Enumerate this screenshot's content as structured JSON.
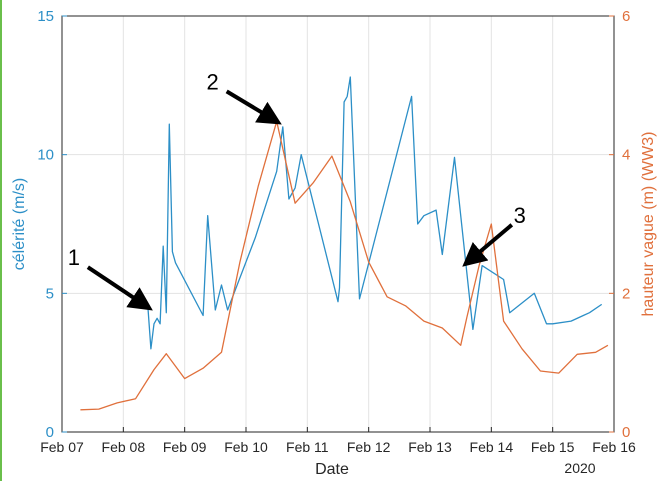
{
  "chart_data": {
    "type": "line",
    "xlabel": "Date",
    "ylabel_left": "célérité (m/s)",
    "ylabel_right": "hauteur vague (m) (WW3)",
    "year_label": "2020",
    "xlim": [
      "2020-02-07",
      "2020-02-16"
    ],
    "ylim_left": [
      0,
      15
    ],
    "ylim_right": [
      0,
      6
    ],
    "x_ticks": [
      "Feb 07",
      "Feb 08",
      "Feb 09",
      "Feb 10",
      "Feb 11",
      "Feb 12",
      "Feb 13",
      "Feb 14",
      "Feb 15",
      "Feb 16"
    ],
    "y_ticks_left": [
      "0",
      "5",
      "10",
      "15"
    ],
    "y_ticks_right": [
      "0",
      "2",
      "4",
      "6"
    ],
    "grid": true,
    "series": [
      {
        "axis": "left",
        "color": "#2c8fc7",
        "x": [
          "2020-02-08 09:36",
          "2020-02-08 10:48",
          "2020-02-08 12:00",
          "2020-02-08 13:12",
          "2020-02-08 14:24",
          "2020-02-08 15:36",
          "2020-02-08 16:48",
          "2020-02-08 18:00",
          "2020-02-08 19:12",
          "2020-02-08 20:24",
          "2020-02-09 07:12",
          "2020-02-09 09:00",
          "2020-02-09 12:00",
          "2020-02-09 14:24",
          "2020-02-09 16:48",
          "2020-02-10 03:36",
          "2020-02-10 12:00",
          "2020-02-10 14:24",
          "2020-02-10 16:48",
          "2020-02-10 19:12",
          "2020-02-10 21:36",
          "2020-02-11 12:00",
          "2020-02-11 12:36",
          "2020-02-11 14:24",
          "2020-02-11 15:36",
          "2020-02-11 16:48",
          "2020-02-11 20:24",
          "2020-02-12 16:48",
          "2020-02-12 19:12",
          "2020-02-12 21:36",
          "2020-02-13 02:24",
          "2020-02-13 04:48",
          "2020-02-13 09:36",
          "2020-02-13 16:48",
          "2020-02-13 20:24",
          "2020-02-14 04:48",
          "2020-02-14 07:12",
          "2020-02-14 16:48",
          "2020-02-14 21:36",
          "2020-02-15 00:00",
          "2020-02-15 07:12",
          "2020-02-15 12:00",
          "2020-02-15 14:24",
          "2020-02-15 19:12"
        ],
        "values": [
          4.5,
          3.0,
          3.9,
          4.1,
          3.9,
          6.7,
          4.3,
          11.1,
          6.5,
          6.1,
          4.2,
          7.8,
          4.4,
          5.3,
          4.4,
          7.0,
          9.4,
          11.0,
          8.4,
          8.8,
          10.0,
          4.7,
          5.2,
          11.9,
          12.1,
          12.8,
          4.8,
          12.1,
          7.5,
          7.8,
          8.0,
          6.4,
          9.9,
          3.7,
          6.0,
          5.5,
          4.3,
          5.0,
          3.9,
          3.9,
          4.0,
          4.2,
          4.3,
          4.6
        ]
      },
      {
        "axis": "right",
        "color": "#e0703c",
        "x": [
          "2020-02-07 07:12",
          "2020-02-07 14:24",
          "2020-02-07 21:36",
          "2020-02-08 04:48",
          "2020-02-08 12:00",
          "2020-02-08 16:48",
          "2020-02-09 00:00",
          "2020-02-09 07:12",
          "2020-02-09 14:24",
          "2020-02-09 21:36",
          "2020-02-10 04:48",
          "2020-02-10 12:00",
          "2020-02-10 19:12",
          "2020-02-11 02:24",
          "2020-02-11 09:36",
          "2020-02-11 16:48",
          "2020-02-12 00:00",
          "2020-02-12 07:12",
          "2020-02-12 14:24",
          "2020-02-12 21:36",
          "2020-02-13 04:48",
          "2020-02-13 12:00",
          "2020-02-13 14:24",
          "2020-02-13 19:12",
          "2020-02-14 00:00",
          "2020-02-14 04:48",
          "2020-02-14 12:00",
          "2020-02-14 19:12",
          "2020-02-15 02:24",
          "2020-02-15 09:36",
          "2020-02-15 16:48",
          "2020-02-15 21:36"
        ],
        "values": [
          0.32,
          0.33,
          0.42,
          0.48,
          0.9,
          1.13,
          0.77,
          0.92,
          1.15,
          2.45,
          3.55,
          4.48,
          3.3,
          3.6,
          3.98,
          3.32,
          2.45,
          1.95,
          1.82,
          1.6,
          1.5,
          1.25,
          1.65,
          2.4,
          3.0,
          1.6,
          1.2,
          0.88,
          0.85,
          1.12,
          1.15,
          1.25
        ]
      }
    ],
    "annotations": [
      {
        "label": "1",
        "x": "2020-02-08 09:36",
        "y": 4.5
      },
      {
        "label": "2",
        "x": "2020-02-10 12:00",
        "y": 11.2
      },
      {
        "label": "3",
        "x": "2020-02-13 14:24",
        "y": 6.1
      }
    ]
  }
}
